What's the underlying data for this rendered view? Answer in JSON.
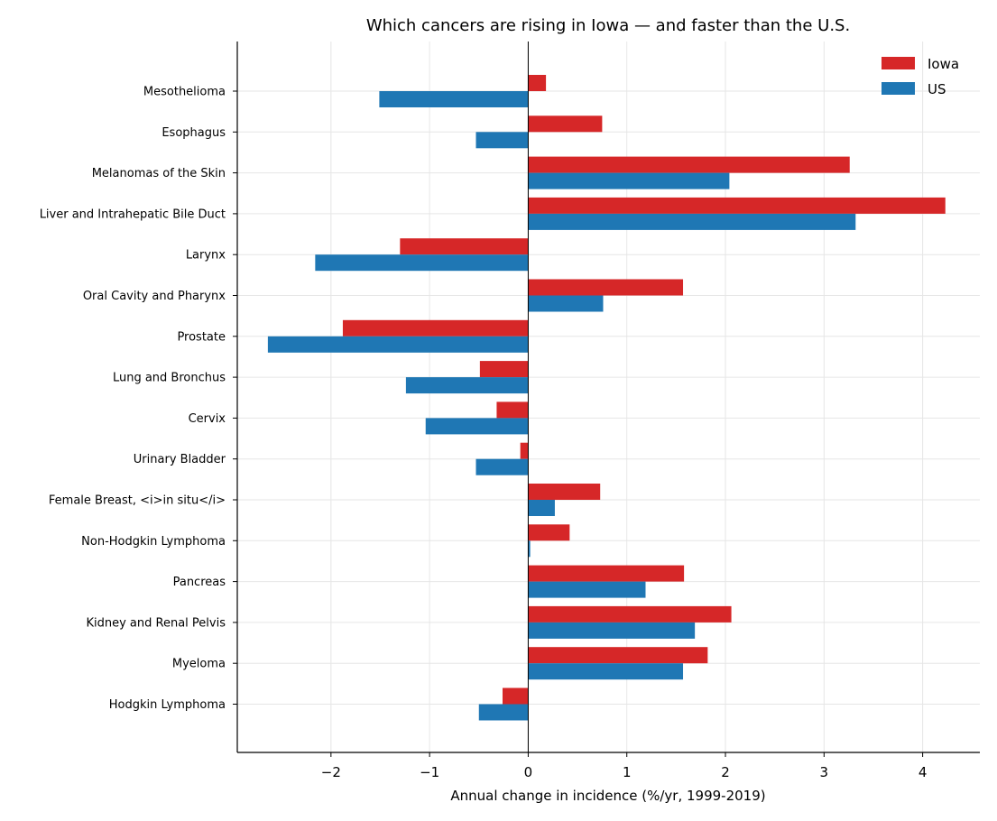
{
  "chart_data": {
    "type": "bar",
    "orientation": "horizontal",
    "title": "Which cancers are rising in Iowa — and faster than the U.S.",
    "xlabel": "Annual change in incidence (%/yr, 1999-2019)",
    "ylabel": "",
    "xlim": [
      -2.95,
      4.58
    ],
    "xticks": [
      -2,
      -1,
      0,
      1,
      2,
      3,
      4
    ],
    "xtick_labels": [
      "−2",
      "−1",
      "0",
      "1",
      "2",
      "3",
      "4"
    ],
    "grid": true,
    "legend_position": "top-right",
    "categories": [
      "Mesothelioma",
      "Esophagus",
      "Melanomas of the Skin",
      "Liver and Intrahepatic Bile Duct",
      "Larynx",
      "Oral Cavity and Pharynx",
      "Prostate",
      "Lung and Bronchus",
      "Cervix",
      "Urinary Bladder",
      "Female Breast, <i>in situ</i>",
      "Non-Hodgkin Lymphoma",
      "Pancreas",
      "Kidney and Renal Pelvis",
      "Myeloma",
      "Hodgkin Lymphoma"
    ],
    "series": [
      {
        "name": "Iowa",
        "color": "#d62728",
        "values": [
          0.18,
          0.75,
          3.26,
          4.23,
          -1.3,
          1.57,
          -1.88,
          -0.49,
          -0.32,
          -0.08,
          0.73,
          0.42,
          1.58,
          2.06,
          1.82,
          -0.26
        ]
      },
      {
        "name": "US",
        "color": "#1f77b4",
        "values": [
          -1.51,
          -0.53,
          2.04,
          3.32,
          -2.16,
          0.76,
          -2.64,
          -1.24,
          -1.04,
          -0.53,
          0.27,
          0.02,
          1.19,
          1.69,
          1.57,
          -0.5
        ]
      }
    ]
  }
}
